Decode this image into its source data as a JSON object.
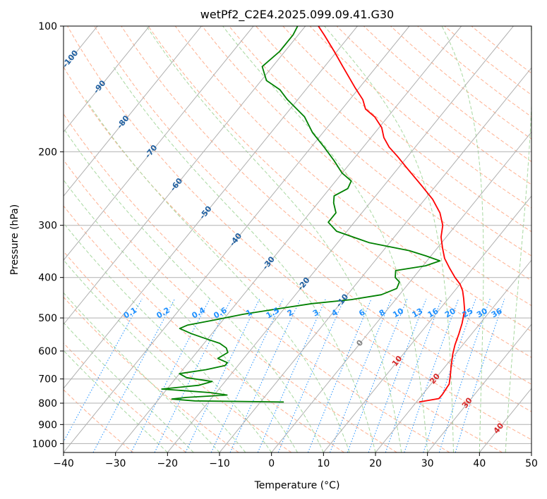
{
  "chart_data": {
    "type": "line",
    "subtype": "skew-t log-p diagram",
    "title": "wetPf2_C2E4.2025.099.09.41.G30",
    "xlabel": "Temperature (°C)",
    "ylabel": "Pressure (hPa)",
    "xlim": [
      -40,
      50
    ],
    "ylim": [
      1050,
      100
    ],
    "yscale": "log",
    "grid": true,
    "x_ticks": [
      -40,
      -30,
      -20,
      -10,
      0,
      10,
      20,
      30,
      40,
      50
    ],
    "x_tick_labels": [
      "−40",
      "−30",
      "−20",
      "−10",
      "0",
      "10",
      "20",
      "30",
      "40",
      "50"
    ],
    "y_ticks": [
      1000,
      900,
      800,
      700,
      600,
      500,
      400,
      300,
      200,
      100
    ],
    "y_tick_labels": [
      "1000",
      "900",
      "800",
      "700",
      "600",
      "500",
      "400",
      "300",
      "200",
      "100"
    ],
    "series": [
      {
        "role": "temperature",
        "color": "#ff0000",
        "points": [
          [
            795,
            20.5
          ],
          [
            780,
            23.8
          ],
          [
            760,
            23.8
          ],
          [
            720,
            23.5
          ],
          [
            690,
            22.5
          ],
          [
            650,
            21.0
          ],
          [
            610,
            19.5
          ],
          [
            580,
            18.5
          ],
          [
            545,
            17.5
          ],
          [
            515,
            16.5
          ],
          [
            480,
            15.0
          ],
          [
            450,
            13.0
          ],
          [
            430,
            11.5
          ],
          [
            415,
            10.0
          ],
          [
            400,
            8.0
          ],
          [
            380,
            5.5
          ],
          [
            360,
            3.0
          ],
          [
            340,
            1.0
          ],
          [
            320,
            -1.0
          ],
          [
            300,
            -2.5
          ],
          [
            280,
            -5.0
          ],
          [
            260,
            -8.5
          ],
          [
            240,
            -13.0
          ],
          [
            220,
            -18.0
          ],
          [
            205,
            -22.0
          ],
          [
            195,
            -25.0
          ],
          [
            185,
            -27.5
          ],
          [
            175,
            -29.5
          ],
          [
            165,
            -32.5
          ],
          [
            158,
            -35.5
          ],
          [
            150,
            -37.5
          ],
          [
            140,
            -41.0
          ],
          [
            125,
            -46.5
          ],
          [
            115,
            -50.5
          ],
          [
            105,
            -55.0
          ],
          [
            100,
            -57.5
          ]
        ]
      },
      {
        "role": "dewpoint",
        "color": "#008000",
        "points": [
          [
            795,
            -5.5
          ],
          [
            790,
            -22.8
          ],
          [
            782,
            -27.5
          ],
          [
            775,
            -25.0
          ],
          [
            765,
            -17.5
          ],
          [
            755,
            -21.0
          ],
          [
            740,
            -31.0
          ],
          [
            725,
            -24.5
          ],
          [
            710,
            -22.5
          ],
          [
            695,
            -28.0
          ],
          [
            680,
            -30.0
          ],
          [
            665,
            -25.5
          ],
          [
            650,
            -22.5
          ],
          [
            640,
            -22.5
          ],
          [
            625,
            -25.0
          ],
          [
            605,
            -24.0
          ],
          [
            590,
            -25.0
          ],
          [
            575,
            -27.0
          ],
          [
            560,
            -30.5
          ],
          [
            545,
            -34.0
          ],
          [
            530,
            -37.0
          ],
          [
            520,
            -36.0
          ],
          [
            505,
            -31.5
          ],
          [
            490,
            -27.0
          ],
          [
            475,
            -21.0
          ],
          [
            462,
            -15.5
          ],
          [
            452,
            -8.5
          ],
          [
            440,
            -3.5
          ],
          [
            425,
            -1.5
          ],
          [
            410,
            -2.0
          ],
          [
            400,
            -3.5
          ],
          [
            385,
            -4.5
          ],
          [
            375,
            0.5
          ],
          [
            365,
            2.5
          ],
          [
            355,
            -1.0
          ],
          [
            345,
            -5.0
          ],
          [
            330,
            -14.0
          ],
          [
            310,
            -22.0
          ],
          [
            295,
            -25.0
          ],
          [
            280,
            -25.0
          ],
          [
            265,
            -27.0
          ],
          [
            255,
            -28.0
          ],
          [
            245,
            -26.5
          ],
          [
            235,
            -27.0
          ],
          [
            225,
            -30.0
          ],
          [
            210,
            -33.5
          ],
          [
            195,
            -37.5
          ],
          [
            180,
            -42.0
          ],
          [
            165,
            -46.0
          ],
          [
            150,
            -52.0
          ],
          [
            142,
            -55.0
          ],
          [
            135,
            -59.0
          ],
          [
            125,
            -62.0
          ],
          [
            115,
            -61.0
          ],
          [
            105,
            -61.0
          ],
          [
            100,
            -61.5
          ]
        ]
      }
    ],
    "isotherm_labels": [
      "-100",
      "-90",
      "-80",
      "-70",
      "-60",
      "-50",
      "-40",
      "-30",
      "-20",
      "-10",
      "0",
      "10",
      "20",
      "30",
      "40"
    ],
    "mixing_ratio_labels": [
      "0.1",
      "0.2",
      "0.4",
      "0.6",
      "1",
      "1.5",
      "2",
      "3",
      "4",
      "6",
      "8",
      "10",
      "13",
      "16",
      "20",
      "25",
      "30",
      "36"
    ],
    "colors": {
      "grid": "#b0b0b0",
      "temperature": "#ff0000",
      "dewpoint": "#008000",
      "mixing_ratio": "#1e90ff",
      "dry_adiabat": "#ffb090",
      "moist_adiabat": "#a8d8a0",
      "cold_isotherm_label": "#1f5fa0",
      "warm_isotherm_label": "#d62728",
      "zero_isotherm_label": "#808080",
      "mixing_label": "#1e90ff"
    }
  }
}
